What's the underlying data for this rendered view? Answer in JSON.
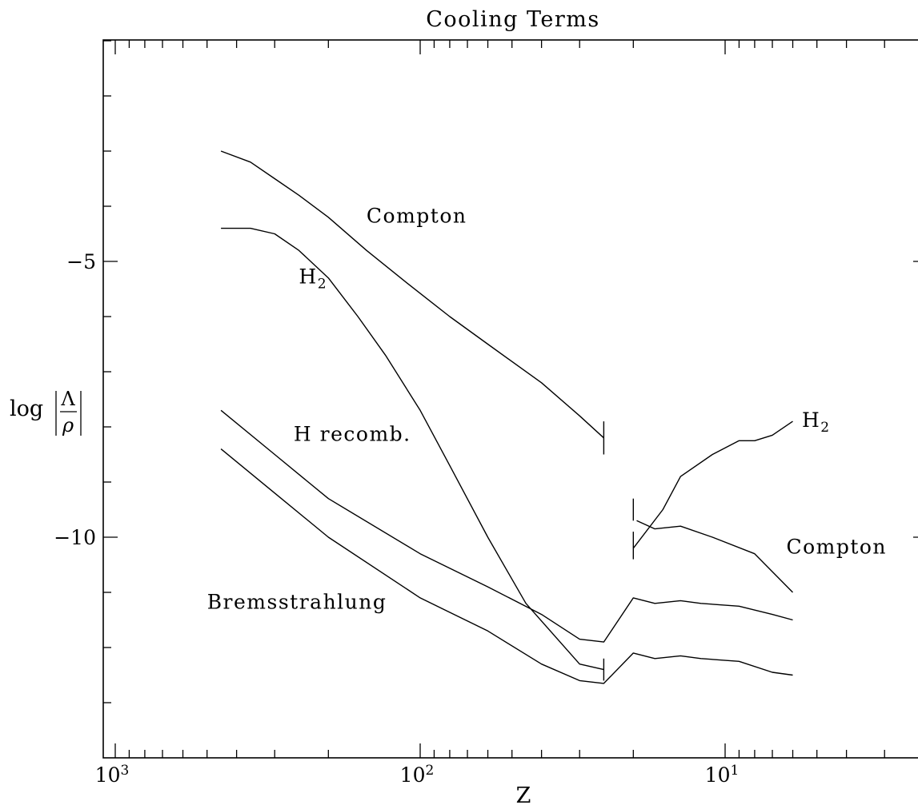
{
  "chart_data": {
    "type": "line",
    "title": "Cooling Terms",
    "xlabel": "Z",
    "ylabel": {
      "prefix": "log",
      "numerator": "Λ",
      "denominator": "ρ"
    },
    "x_scale": "log-reversed",
    "xlim": [
      1000,
      2
    ],
    "ylim": [
      -13.9,
      -1.0
    ],
    "x_tick_labels": [
      {
        "value": 1000,
        "base": "10",
        "exp": "3"
      },
      {
        "value": 100,
        "base": "10",
        "exp": "2"
      },
      {
        "value": 10,
        "base": "10",
        "exp": "1"
      }
    ],
    "y_tick_labels": [
      {
        "value": -5,
        "text": "−5"
      },
      {
        "value": -10,
        "text": "−10"
      }
    ],
    "grid": false,
    "legend": "none",
    "series": [
      {
        "id": "compton-early",
        "label": "Compton",
        "x": [
          450,
          360,
          300,
          250,
          200,
          150,
          110,
          80,
          60,
          40,
          30,
          25
        ],
        "y": [
          -3.0,
          -3.2,
          -3.5,
          -3.8,
          -4.2,
          -4.8,
          -5.4,
          -6.0,
          -6.5,
          -7.2,
          -7.8,
          -8.2
        ]
      },
      {
        "id": "h2-early",
        "label": "H2",
        "x": [
          450,
          360,
          300,
          250,
          200,
          160,
          130,
          100,
          80,
          60,
          45,
          30,
          25
        ],
        "y": [
          -4.4,
          -4.4,
          -4.5,
          -4.8,
          -5.3,
          -6.0,
          -6.7,
          -7.7,
          -8.7,
          -10.0,
          -11.2,
          -12.3,
          -12.4
        ]
      },
      {
        "id": "hrec",
        "label": "H recomb.",
        "x": [
          450,
          300,
          200,
          100,
          60,
          40,
          30,
          25,
          20,
          17,
          14,
          12,
          9,
          7,
          6
        ],
        "y": [
          -7.7,
          -8.5,
          -9.3,
          -10.3,
          -10.9,
          -11.4,
          -11.85,
          -11.9,
          -11.1,
          -11.2,
          -11.15,
          -11.2,
          -11.25,
          -11.4,
          -11.5
        ]
      },
      {
        "id": "brems",
        "label": "Bremsstrahlung",
        "x": [
          450,
          300,
          200,
          100,
          60,
          40,
          30,
          25,
          20,
          17,
          14,
          12,
          9,
          7,
          6
        ],
        "y": [
          -8.4,
          -9.2,
          -10.0,
          -11.1,
          -11.7,
          -12.3,
          -12.6,
          -12.65,
          -12.1,
          -12.2,
          -12.15,
          -12.2,
          -12.25,
          -12.45,
          -12.5
        ]
      },
      {
        "id": "h2-late",
        "label": "H2",
        "x": [
          20,
          16,
          14,
          11,
          9,
          8,
          7,
          6
        ],
        "y": [
          -10.2,
          -9.5,
          -8.9,
          -8.5,
          -8.25,
          -8.25,
          -8.15,
          -7.9
        ]
      },
      {
        "id": "compton-late",
        "label": "Compton",
        "x": [
          19.5,
          17,
          14,
          11,
          8,
          6
        ],
        "y": [
          -9.7,
          -9.85,
          -9.8,
          -10.0,
          -10.3,
          -11.0
        ]
      }
    ],
    "markers": [
      {
        "x": 25,
        "y": [
          -7.9,
          -8.5
        ]
      },
      {
        "x": 25,
        "y": [
          -12.2,
          -12.6
        ]
      },
      {
        "x": 20,
        "y": [
          -9.3,
          -9.7
        ]
      },
      {
        "x": 20,
        "y": [
          -9.9,
          -10.4
        ]
      }
    ],
    "annotations": [
      {
        "name": "compton-upper-label",
        "text": "Compton",
        "x": 150,
        "y": -4.3
      },
      {
        "name": "h2-upper-label",
        "text": "H",
        "sub": "2",
        "x": 250,
        "y": -5.4
      },
      {
        "name": "h-recomb-label",
        "text": "H recomb.",
        "x": 260,
        "y": -8.25
      },
      {
        "name": "bremsstrahlung-label",
        "text": "Bremsstrahlung",
        "x": 500,
        "y": -11.3
      },
      {
        "name": "h2-right-label",
        "text": "H",
        "sub": "2",
        "x": 5.6,
        "y": -8.0
      },
      {
        "name": "compton-right-label",
        "text": "Compton",
        "x": 6.3,
        "y": -10.3
      }
    ]
  }
}
